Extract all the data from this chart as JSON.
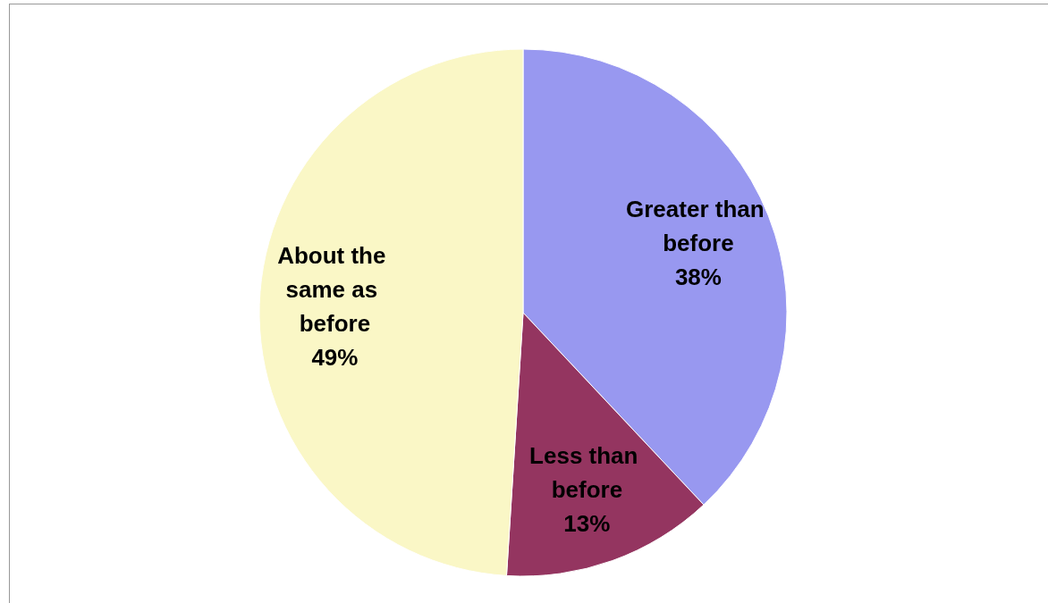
{
  "chart_data": {
    "type": "pie",
    "categories": [
      "Greater than before",
      "Less than before",
      "About the same as before"
    ],
    "values": [
      38,
      13,
      49
    ],
    "colors": [
      "#9898f0",
      "#943560",
      "#faf7c6"
    ],
    "value_labels": [
      "38%",
      "13%",
      "49%"
    ],
    "legend": false
  }
}
